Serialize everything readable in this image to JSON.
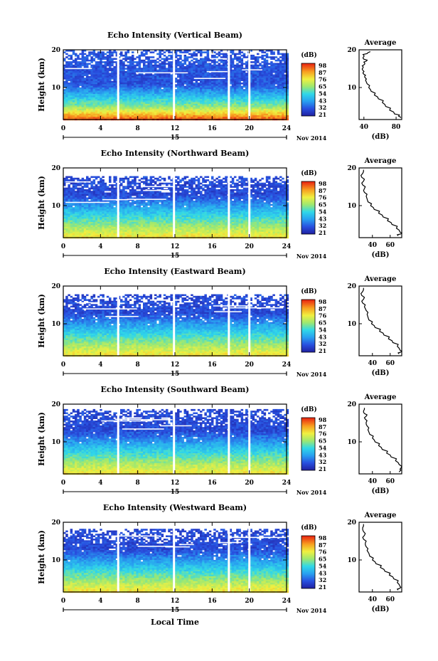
{
  "figure": {
    "xlabel": "Local Time",
    "date_label": "Nov 2014",
    "date_marker": "15"
  },
  "chart_data": [
    {
      "type": "heatmap",
      "title": "Echo Intensity (Vertical Beam)",
      "ylabel": "Height (km)",
      "xlim": [
        0,
        24
      ],
      "xticks": [
        0,
        4,
        8,
        12,
        16,
        20,
        24
      ],
      "ylim": [
        1.5,
        20
      ],
      "yticks": [
        10,
        20
      ],
      "colorbar": {
        "title": "(dB)",
        "ticks": [
          21,
          32,
          43,
          54,
          65,
          76,
          87,
          98
        ]
      },
      "data_gaps_hours": [
        5.9,
        11.9,
        17.8,
        20
      ],
      "fill_top_km": 19.5,
      "average_profile": {
        "title": "Average",
        "xlabel": "(dB)",
        "xlim": [
          34,
          87
        ],
        "xticks": [
          40,
          80
        ],
        "ylim": [
          1.5,
          20
        ],
        "yticks": [
          10,
          20
        ],
        "points": [
          [
            48,
            19.5
          ],
          [
            44,
            19
          ],
          [
            40,
            18.5
          ],
          [
            39,
            18
          ],
          [
            40,
            17.5
          ],
          [
            43,
            17
          ],
          [
            41,
            16.5
          ],
          [
            40,
            16
          ],
          [
            39,
            15.5
          ],
          [
            38,
            15
          ],
          [
            39,
            14.5
          ],
          [
            39,
            14
          ],
          [
            40,
            13.5
          ],
          [
            41,
            13
          ],
          [
            42,
            12.5
          ],
          [
            42,
            12
          ],
          [
            44,
            11
          ],
          [
            46,
            10
          ],
          [
            49,
            9
          ],
          [
            53,
            8
          ],
          [
            58,
            7
          ],
          [
            63,
            6
          ],
          [
            67,
            5
          ],
          [
            72,
            4
          ],
          [
            78,
            3
          ],
          [
            83,
            2.4
          ],
          [
            86,
            2
          ]
        ]
      }
    },
    {
      "type": "heatmap",
      "title": "Echo Intensity (Northward Beam)",
      "ylabel": "Height (km)",
      "xlim": [
        0,
        24
      ],
      "xticks": [
        0,
        4,
        8,
        12,
        16,
        20,
        24
      ],
      "ylim": [
        1.5,
        20
      ],
      "yticks": [
        10,
        20
      ],
      "colorbar": {
        "title": "(dB)",
        "ticks": [
          21,
          32,
          43,
          54,
          65,
          76,
          87,
          98
        ]
      },
      "data_gaps_hours": [
        5.9,
        11.9,
        17.8,
        20
      ],
      "fill_top_km": 17.5,
      "average_profile": {
        "title": "Average",
        "xlabel": "(dB)",
        "xlim": [
          25,
          73
        ],
        "xticks": [
          40,
          60
        ],
        "ylim": [
          1.5,
          20
        ],
        "yticks": [
          10,
          20
        ],
        "points": [
          [
            30,
            19.5
          ],
          [
            29,
            18.5
          ],
          [
            28,
            17.5
          ],
          [
            30,
            16.5
          ],
          [
            29,
            15.5
          ],
          [
            31,
            14.5
          ],
          [
            31,
            13.5
          ],
          [
            33,
            12.5
          ],
          [
            35,
            11
          ],
          [
            38,
            10
          ],
          [
            42,
            9
          ],
          [
            47,
            8
          ],
          [
            52,
            7
          ],
          [
            57,
            6
          ],
          [
            62,
            5
          ],
          [
            67,
            4
          ],
          [
            71,
            3
          ],
          [
            72,
            2.5
          ],
          [
            69,
            2
          ]
        ]
      }
    },
    {
      "type": "heatmap",
      "title": "Echo Intensity (Eastward Beam)",
      "ylabel": "Height (km)",
      "xlim": [
        0,
        24
      ],
      "xticks": [
        0,
        4,
        8,
        12,
        16,
        20,
        24
      ],
      "ylim": [
        1.5,
        20
      ],
      "yticks": [
        10,
        20
      ],
      "colorbar": {
        "title": "(dB)",
        "ticks": [
          21,
          32,
          43,
          54,
          65,
          76,
          87,
          98
        ]
      },
      "data_gaps_hours": [
        5.9,
        11.9,
        17.8,
        20
      ],
      "fill_top_km": 17.5,
      "average_profile": {
        "title": "Average",
        "xlabel": "(dB)",
        "xlim": [
          25,
          73
        ],
        "xticks": [
          40,
          60
        ],
        "ylim": [
          1.5,
          20
        ],
        "yticks": [
          10,
          20
        ],
        "points": [
          [
            30,
            19.5
          ],
          [
            29,
            18.5
          ],
          [
            28,
            17.5
          ],
          [
            30,
            16.5
          ],
          [
            29,
            15.5
          ],
          [
            31,
            14.5
          ],
          [
            33,
            13.5
          ],
          [
            34,
            12.5
          ],
          [
            36,
            11
          ],
          [
            39,
            10
          ],
          [
            43,
            9
          ],
          [
            48,
            8
          ],
          [
            53,
            7
          ],
          [
            58,
            6
          ],
          [
            63,
            5
          ],
          [
            68,
            4
          ],
          [
            71,
            3
          ],
          [
            72,
            2.5
          ],
          [
            70,
            2
          ]
        ]
      }
    },
    {
      "type": "heatmap",
      "title": "Echo Intensity (Southward Beam)",
      "ylabel": "Height (km)",
      "xlim": [
        0,
        24
      ],
      "xticks": [
        0,
        4,
        8,
        12,
        16,
        20,
        24
      ],
      "ylim": [
        1.5,
        20
      ],
      "yticks": [
        10,
        20
      ],
      "colorbar": {
        "title": "(dB)",
        "ticks": [
          21,
          32,
          43,
          54,
          65,
          76,
          87,
          98
        ]
      },
      "data_gaps_hours": [
        5.9,
        11.9,
        17.8,
        20
      ],
      "fill_top_km": 18.5,
      "average_profile": {
        "title": "Average",
        "xlabel": "(dB)",
        "xlim": [
          25,
          73
        ],
        "xticks": [
          40,
          60
        ],
        "ylim": [
          1.5,
          20
        ],
        "yticks": [
          10,
          20
        ],
        "points": [
          [
            31,
            19
          ],
          [
            30,
            18.2
          ],
          [
            31,
            17.5
          ],
          [
            33,
            16.8
          ],
          [
            32,
            16
          ],
          [
            33,
            15.2
          ],
          [
            34,
            14.2
          ],
          [
            35,
            13.2
          ],
          [
            37,
            12
          ],
          [
            40,
            11
          ],
          [
            43,
            10
          ],
          [
            47,
            9
          ],
          [
            51,
            8
          ],
          [
            56,
            7
          ],
          [
            61,
            6
          ],
          [
            66,
            5
          ],
          [
            70,
            4
          ],
          [
            72,
            3
          ],
          [
            72,
            2.5
          ],
          [
            70,
            2
          ]
        ]
      }
    },
    {
      "type": "heatmap",
      "title": "Echo Intensity (Westward Beam)",
      "ylabel": "Height (km)",
      "xlim": [
        0,
        24
      ],
      "xticks": [
        0,
        4,
        8,
        12,
        16,
        20,
        24
      ],
      "ylim": [
        1.5,
        20
      ],
      "yticks": [
        10,
        20
      ],
      "colorbar": {
        "title": "(dB)",
        "ticks": [
          21,
          32,
          43,
          54,
          65,
          76,
          87,
          98
        ]
      },
      "data_gaps_hours": [
        5.9,
        11.9,
        17.8,
        20
      ],
      "fill_top_km": 18,
      "average_profile": {
        "title": "Average",
        "xlabel": "(dB)",
        "xlim": [
          25,
          73
        ],
        "xticks": [
          40,
          60
        ],
        "ylim": [
          1.5,
          20
        ],
        "yticks": [
          10,
          20
        ],
        "points": [
          [
            30,
            19.5
          ],
          [
            29,
            18.5
          ],
          [
            30,
            17.5
          ],
          [
            31,
            16.5
          ],
          [
            30,
            15.5
          ],
          [
            32,
            14.5
          ],
          [
            33,
            13.5
          ],
          [
            34,
            12.5
          ],
          [
            37,
            11
          ],
          [
            40,
            10
          ],
          [
            44,
            9
          ],
          [
            49,
            8
          ],
          [
            54,
            7
          ],
          [
            59,
            6
          ],
          [
            64,
            5
          ],
          [
            68,
            4
          ],
          [
            71,
            3
          ],
          [
            71,
            2.5
          ],
          [
            69,
            2
          ]
        ]
      }
    }
  ]
}
